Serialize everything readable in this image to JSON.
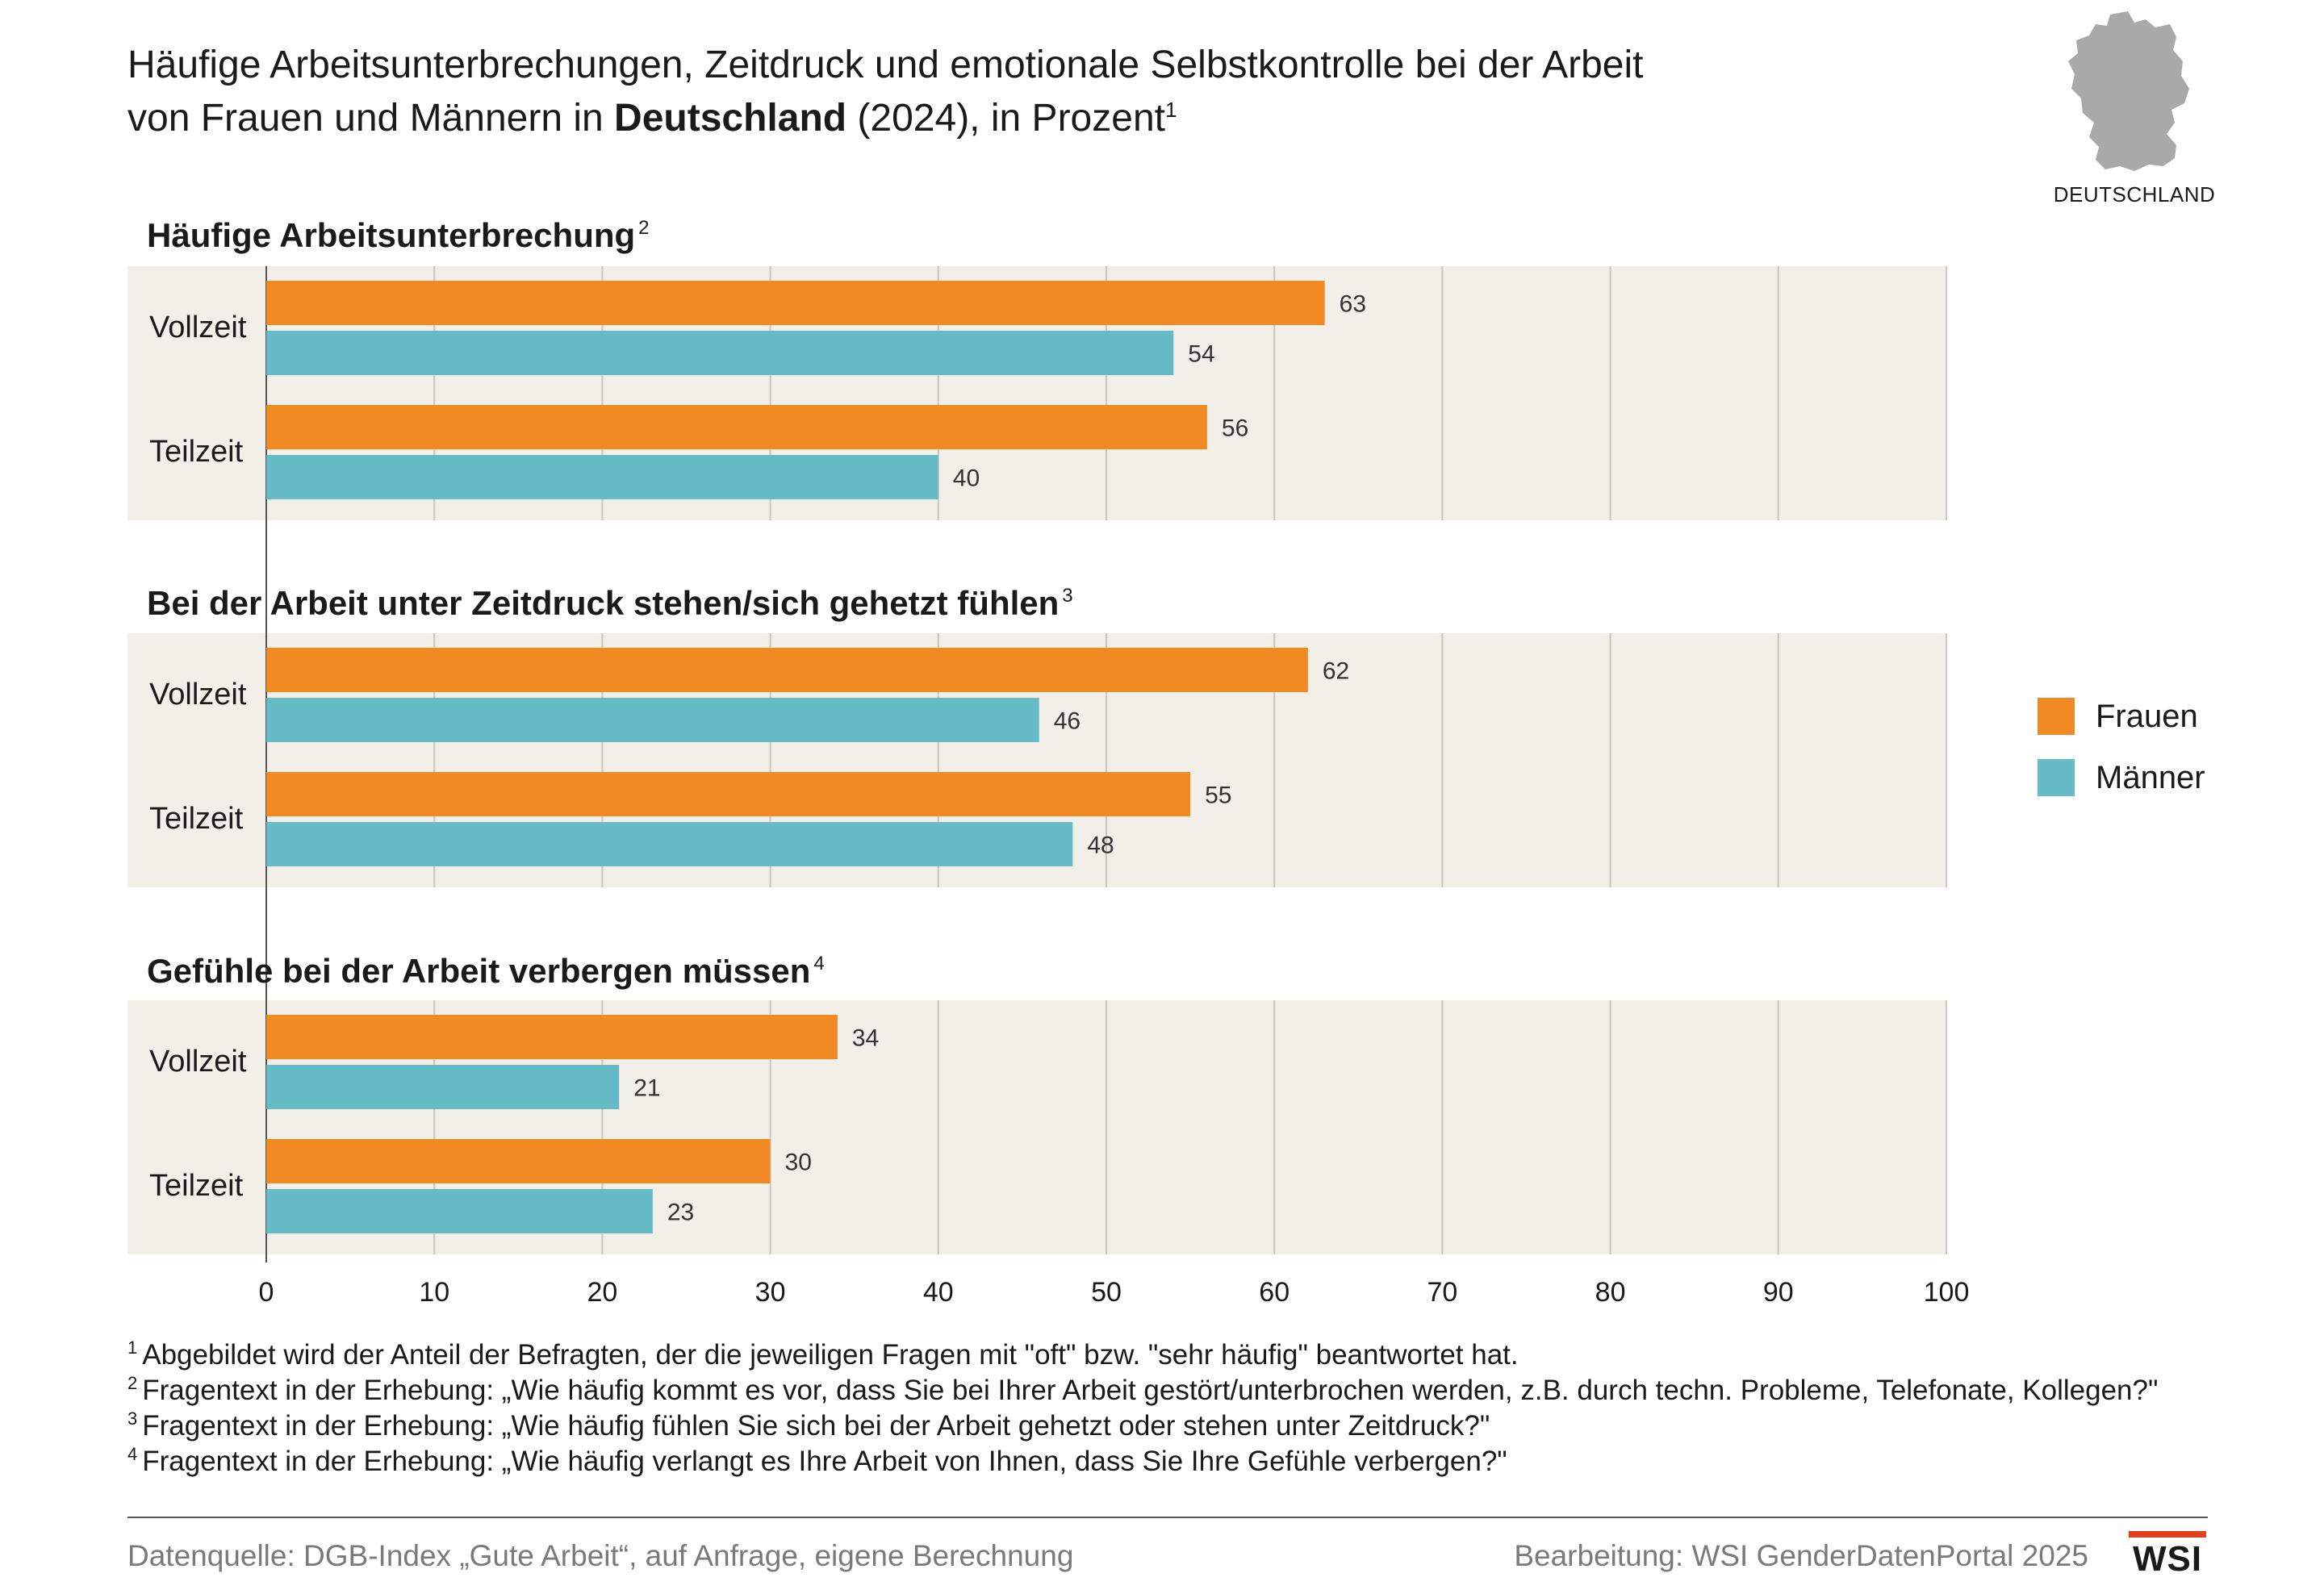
{
  "title": {
    "line1": "Häufige Arbeitsunterbrechungen, Zeitdruck und emotionale Selbstkontrolle bei der Arbeit",
    "line2_pre": "von Frauen und Männern in ",
    "line2_bold": "Deutschland",
    "line2_post": " (2024), in Prozent",
    "line2_sup": "1"
  },
  "map": {
    "label": "DEUTSCHLAND",
    "icon": "germany-map-icon"
  },
  "colors": {
    "frauen": "#f28a24",
    "maenner": "#66bcc6",
    "panel": "#f1efe7",
    "gridline": "#c9c7bd"
  },
  "chart_data": {
    "type": "bar",
    "orientation": "horizontal",
    "xlim": [
      0,
      100
    ],
    "xticks": [
      0,
      10,
      20,
      30,
      40,
      50,
      60,
      70,
      80,
      90,
      100
    ],
    "legend": {
      "placement": "right",
      "entries": [
        "Frauen",
        "Männer"
      ]
    },
    "panels": [
      {
        "title": "Häufige Arbeitsunterbrechung",
        "sup": "2",
        "categories": [
          "Vollzeit",
          "Teilzeit"
        ],
        "series": [
          {
            "name": "Frauen",
            "values": [
              63,
              56
            ]
          },
          {
            "name": "Männer",
            "values": [
              54,
              40
            ]
          }
        ]
      },
      {
        "title": "Bei der Arbeit unter Zeitdruck stehen/sich gehetzt fühlen",
        "sup": "3",
        "categories": [
          "Vollzeit",
          "Teilzeit"
        ],
        "series": [
          {
            "name": "Frauen",
            "values": [
              62,
              55
            ]
          },
          {
            "name": "Männer",
            "values": [
              46,
              48
            ]
          }
        ]
      },
      {
        "title": "Gefühle bei der Arbeit verbergen müssen",
        "sup": "4",
        "categories": [
          "Vollzeit",
          "Teilzeit"
        ],
        "series": [
          {
            "name": "Frauen",
            "values": [
              34,
              30
            ]
          },
          {
            "name": "Männer",
            "values": [
              21,
              23
            ]
          }
        ]
      }
    ]
  },
  "footnotes": [
    {
      "num": "1",
      "text": "Abgebildet wird der Anteil der Befragten, der die jeweiligen Fragen mit \"oft\" bzw. \"sehr häufig\" beantwortet hat."
    },
    {
      "num": "2",
      "text": "Fragentext in der Erhebung: „Wie häufig kommt es vor, dass Sie bei Ihrer Arbeit gestört/unterbrochen werden, z.B. durch techn. Probleme, Telefonate, Kollegen?\""
    },
    {
      "num": "3",
      "text": "Fragentext in der Erhebung: „Wie häufig fühlen Sie sich bei der Arbeit gehetzt oder stehen unter Zeitdruck?\""
    },
    {
      "num": "4",
      "text": "Fragentext in der Erhebung: „Wie häufig verlangt es Ihre Arbeit von Ihnen, dass Sie Ihre Gefühle verbergen?\""
    }
  ],
  "source": "Datenquelle: DGB-Index „Gute Arbeit“, auf Anfrage, eigene Berechnung",
  "credit": "Bearbeitung: WSI GenderDatenPortal 2025",
  "logo": "WSI"
}
